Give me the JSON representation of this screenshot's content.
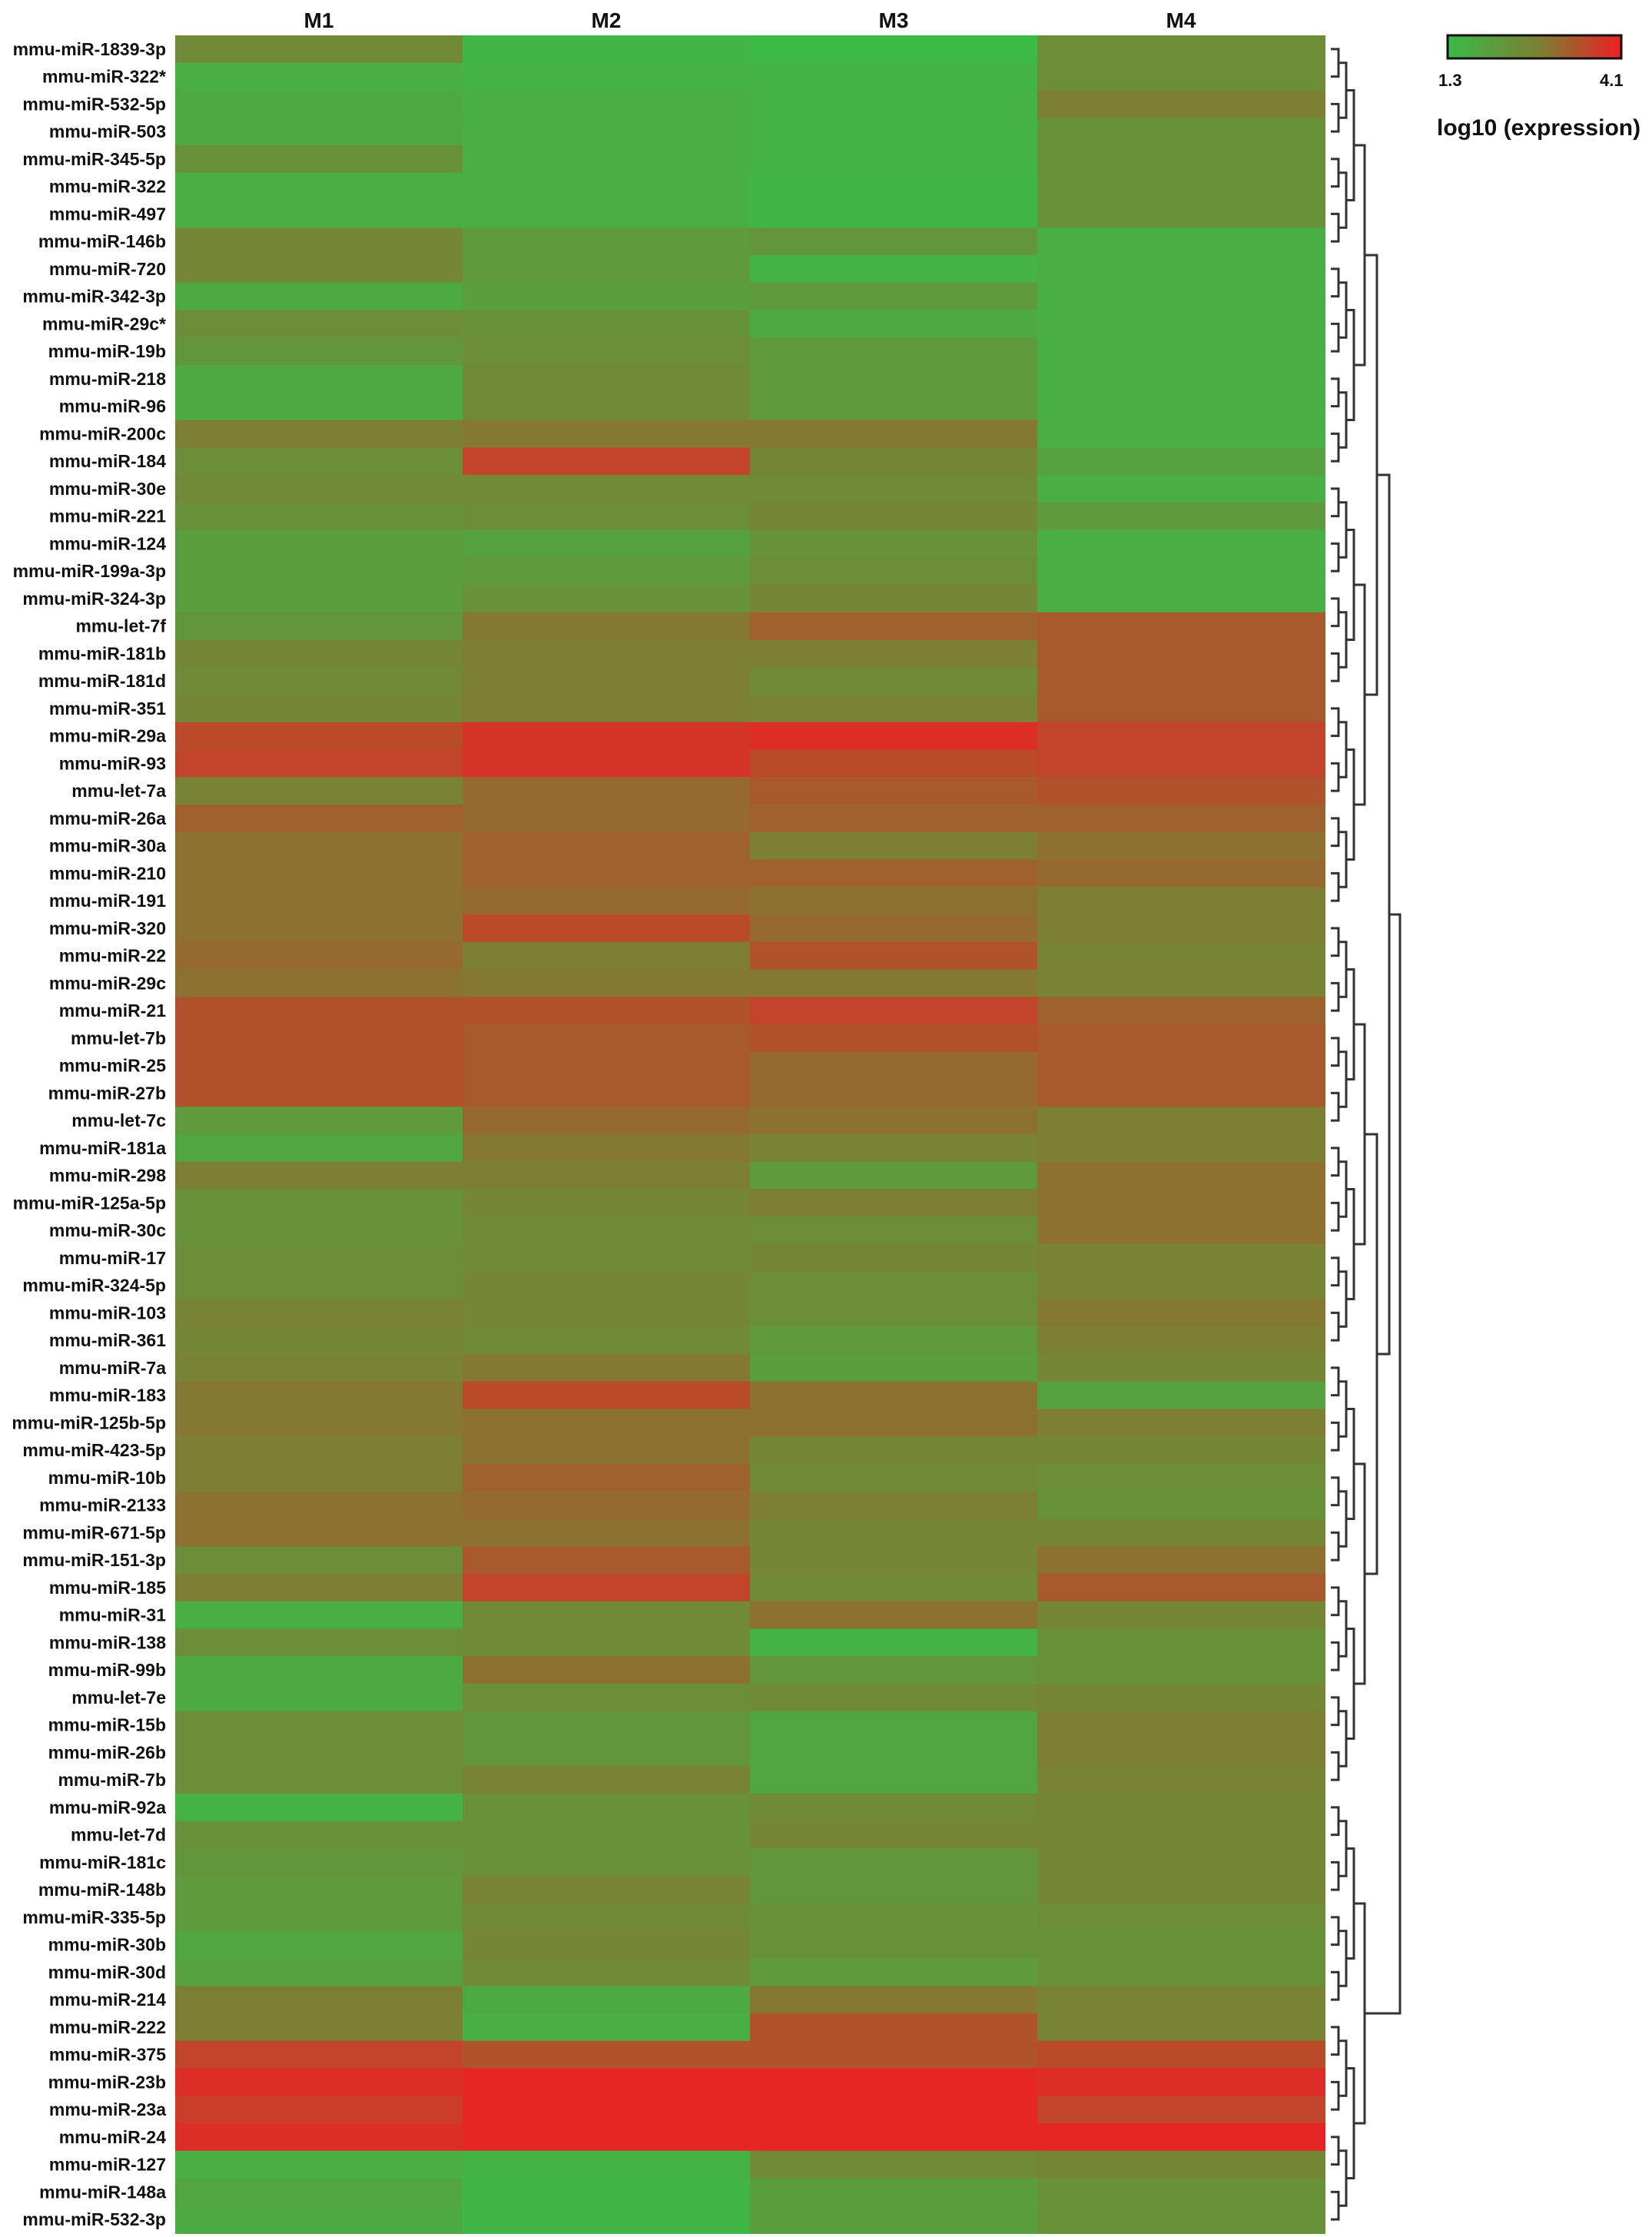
{
  "chart_data": {
    "type": "heatmap",
    "columns": [
      "M1",
      "M2",
      "M3",
      "M4"
    ],
    "rows": [
      "mmu-miR-1839-3p",
      "mmu-miR-322*",
      "mmu-miR-532-5p",
      "mmu-miR-503",
      "mmu-miR-345-5p",
      "mmu-miR-322",
      "mmu-miR-497",
      "mmu-miR-146b",
      "mmu-miR-720",
      "mmu-miR-342-3p",
      "mmu-miR-29c*",
      "mmu-miR-19b",
      "mmu-miR-218",
      "mmu-miR-96",
      "mmu-miR-200c",
      "mmu-miR-184",
      "mmu-miR-30e",
      "mmu-miR-221",
      "mmu-miR-124",
      "mmu-miR-199a-3p",
      "mmu-miR-324-3p",
      "mmu-let-7f",
      "mmu-miR-181b",
      "mmu-miR-181d",
      "mmu-miR-351",
      "mmu-miR-29a",
      "mmu-miR-93",
      "mmu-let-7a",
      "mmu-miR-26a",
      "mmu-miR-30a",
      "mmu-miR-210",
      "mmu-miR-191",
      "mmu-miR-320",
      "mmu-miR-22",
      "mmu-miR-29c",
      "mmu-miR-21",
      "mmu-let-7b",
      "mmu-miR-25",
      "mmu-miR-27b",
      "mmu-let-7c",
      "mmu-miR-181a",
      "mmu-miR-298",
      "mmu-miR-125a-5p",
      "mmu-miR-30c",
      "mmu-miR-17",
      "mmu-miR-324-5p",
      "mmu-miR-103",
      "mmu-miR-361",
      "mmu-miR-7a",
      "mmu-miR-183",
      "mmu-miR-125b-5p",
      "mmu-miR-423-5p",
      "mmu-miR-10b",
      "mmu-miR-2133",
      "mmu-miR-671-5p",
      "mmu-miR-151-3p",
      "mmu-miR-185",
      "mmu-miR-31",
      "mmu-miR-138",
      "mmu-miR-99b",
      "mmu-let-7e",
      "mmu-miR-15b",
      "mmu-miR-26b",
      "mmu-miR-7b",
      "mmu-miR-92a",
      "mmu-let-7d",
      "mmu-miR-181c",
      "mmu-miR-148b",
      "mmu-miR-335-5p",
      "mmu-miR-30b",
      "mmu-miR-30d",
      "mmu-miR-214",
      "mmu-miR-222",
      "mmu-miR-375",
      "mmu-miR-23b",
      "mmu-miR-23a",
      "mmu-miR-24",
      "mmu-miR-127",
      "mmu-miR-148a",
      "mmu-miR-532-3p"
    ],
    "values": [
      [
        2.5,
        1.4,
        1.3,
        2.4
      ],
      [
        1.6,
        1.5,
        1.5,
        2.4
      ],
      [
        1.7,
        1.6,
        1.5,
        2.8
      ],
      [
        1.7,
        1.6,
        1.5,
        2.3
      ],
      [
        2.3,
        1.6,
        1.5,
        2.3
      ],
      [
        1.6,
        1.6,
        1.4,
        2.3
      ],
      [
        1.6,
        1.6,
        1.4,
        2.3
      ],
      [
        2.6,
        2.1,
        2.2,
        1.6
      ],
      [
        2.6,
        2.1,
        1.5,
        1.6
      ],
      [
        1.7,
        2.0,
        2.1,
        1.6
      ],
      [
        2.4,
        2.3,
        1.7,
        1.6
      ],
      [
        2.2,
        2.4,
        2.1,
        1.6
      ],
      [
        1.7,
        2.5,
        2.1,
        1.6
      ],
      [
        1.7,
        2.5,
        2.1,
        1.6
      ],
      [
        2.8,
        2.9,
        2.9,
        1.6
      ],
      [
        2.4,
        3.6,
        2.6,
        1.9
      ],
      [
        2.5,
        2.5,
        2.5,
        1.6
      ],
      [
        2.3,
        2.4,
        2.6,
        2.1
      ],
      [
        2.0,
        1.9,
        2.3,
        1.6
      ],
      [
        2.0,
        2.1,
        2.4,
        1.6
      ],
      [
        2.0,
        2.3,
        2.6,
        1.6
      ],
      [
        2.2,
        2.9,
        3.2,
        3.3
      ],
      [
        2.6,
        2.8,
        2.8,
        3.3
      ],
      [
        2.5,
        2.8,
        2.5,
        3.3
      ],
      [
        2.6,
        2.8,
        2.7,
        3.3
      ],
      [
        3.5,
        3.8,
        3.9,
        3.6
      ],
      [
        3.6,
        3.8,
        3.5,
        3.6
      ],
      [
        2.7,
        3.1,
        3.3,
        3.4
      ],
      [
        3.2,
        3.1,
        3.2,
        3.2
      ],
      [
        3.0,
        3.2,
        2.8,
        3.0
      ],
      [
        3.0,
        3.2,
        3.2,
        3.1
      ],
      [
        3.0,
        3.1,
        3.0,
        2.8
      ],
      [
        3.0,
        3.5,
        3.1,
        2.8
      ],
      [
        3.1,
        2.8,
        3.4,
        2.7
      ],
      [
        3.0,
        2.9,
        2.9,
        2.7
      ],
      [
        3.4,
        3.4,
        3.6,
        3.2
      ],
      [
        3.4,
        3.3,
        3.4,
        3.3
      ],
      [
        3.4,
        3.3,
        3.1,
        3.3
      ],
      [
        3.4,
        3.3,
        3.1,
        3.3
      ],
      [
        2.1,
        3.1,
        3.0,
        2.8
      ],
      [
        1.8,
        2.9,
        2.7,
        2.8
      ],
      [
        2.8,
        2.8,
        2.1,
        3.0
      ],
      [
        2.3,
        2.6,
        2.8,
        3.0
      ],
      [
        2.3,
        2.5,
        2.4,
        3.0
      ],
      [
        2.4,
        2.5,
        2.6,
        2.7
      ],
      [
        2.4,
        2.6,
        2.4,
        2.7
      ],
      [
        2.7,
        2.6,
        2.4,
        2.9
      ],
      [
        2.6,
        2.5,
        2.1,
        2.8
      ],
      [
        2.7,
        2.9,
        2.0,
        2.6
      ],
      [
        2.9,
        3.5,
        3.0,
        1.9
      ],
      [
        2.9,
        3.0,
        3.0,
        2.8
      ],
      [
        2.8,
        3.0,
        2.6,
        2.6
      ],
      [
        2.8,
        3.2,
        2.5,
        2.4
      ],
      [
        3.0,
        3.1,
        2.8,
        2.3
      ],
      [
        3.0,
        3.0,
        2.6,
        2.6
      ],
      [
        2.4,
        3.3,
        2.6,
        3.0
      ],
      [
        2.8,
        3.6,
        2.5,
        3.3
      ],
      [
        1.6,
        2.5,
        3.0,
        2.6
      ],
      [
        2.4,
        2.5,
        1.5,
        2.3
      ],
      [
        1.7,
        3.0,
        2.2,
        2.3
      ],
      [
        1.7,
        2.4,
        2.5,
        2.6
      ],
      [
        2.4,
        2.2,
        1.8,
        2.8
      ],
      [
        2.4,
        2.2,
        1.8,
        2.8
      ],
      [
        2.4,
        2.7,
        1.8,
        2.7
      ],
      [
        1.5,
        2.3,
        2.5,
        2.6
      ],
      [
        2.3,
        2.3,
        2.6,
        2.6
      ],
      [
        2.2,
        2.3,
        2.2,
        2.6
      ],
      [
        2.1,
        2.7,
        2.2,
        2.6
      ],
      [
        2.1,
        2.5,
        2.3,
        2.4
      ],
      [
        1.8,
        2.6,
        2.3,
        2.3
      ],
      [
        1.9,
        2.5,
        2.1,
        2.3
      ],
      [
        2.8,
        1.7,
        2.9,
        2.7
      ],
      [
        2.8,
        1.6,
        3.4,
        2.7
      ],
      [
        3.6,
        3.4,
        3.4,
        3.5
      ],
      [
        3.9,
        4.0,
        4.0,
        3.9
      ],
      [
        3.7,
        4.0,
        4.0,
        3.6
      ],
      [
        3.9,
        4.0,
        4.0,
        4.0
      ],
      [
        1.6,
        1.5,
        2.5,
        2.6
      ],
      [
        1.8,
        1.4,
        2.0,
        2.3
      ],
      [
        1.7,
        1.4,
        2.0,
        2.3
      ]
    ],
    "colorscale": {
      "min": 1.3,
      "max": 4.1,
      "low_color": "#3cba48",
      "mid_color": "#7f7d33",
      "high_color": "#ee1e24"
    },
    "legend": {
      "min_label": "1.3",
      "max_label": "4.1",
      "title": "log10 (expression)"
    },
    "dendrogram": true
  }
}
